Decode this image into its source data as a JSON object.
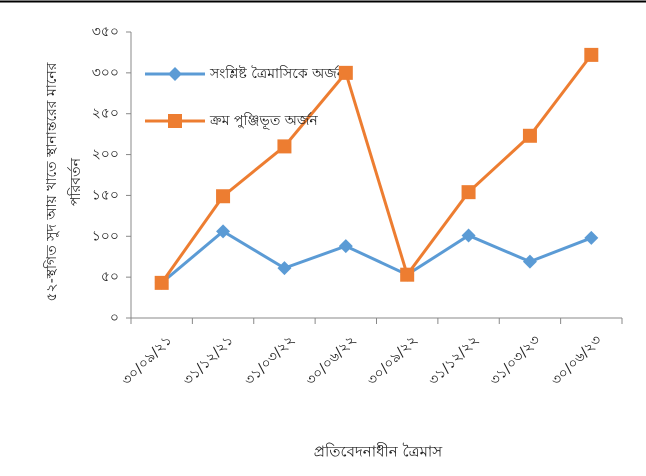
{
  "chart_data": {
    "type": "line",
    "y_label": [
      "৫২-স্থগিত সুদ আয় খাতে স্থানান্তরের মানের",
      "পরিবর্তন"
    ],
    "x_label": "প্রতিবেদনাধীন ত্রৈমাস",
    "categories": [
      "৩০/০৯/২১",
      "৩১/১২/২১",
      "৩১/০৩/২২",
      "৩০/০৬/২২",
      "৩০/০৯/২২",
      "৩১/১২/২২",
      "৩১/০৩/২৩",
      "৩০/০৬/২৩"
    ],
    "series": [
      {
        "name": "সংশ্লিষ্ট ত্রৈমাসিকে অর্জন",
        "color": "#5b9bd5",
        "marker": "diamond",
        "values": [
          43,
          106,
          61,
          88,
          53,
          101,
          69,
          98
        ]
      },
      {
        "name": "ক্রম পুঞ্জিভূত অর্জন",
        "color": "#ed7d31",
        "marker": "square",
        "values": [
          43,
          149,
          210,
          300,
          53,
          154,
          223,
          322
        ]
      }
    ],
    "ylim": [
      0,
      350
    ],
    "yticks": [
      {
        "value": 0,
        "label": "০"
      },
      {
        "value": 50,
        "label": "৫০"
      },
      {
        "value": 100,
        "label": "১০০"
      },
      {
        "value": 150,
        "label": "১৫০"
      },
      {
        "value": 200,
        "label": "২০০"
      },
      {
        "value": 250,
        "label": "২৫০"
      },
      {
        "value": 300,
        "label": "৩০০"
      },
      {
        "value": 350,
        "label": "৩৫০"
      }
    ],
    "grid": false
  }
}
